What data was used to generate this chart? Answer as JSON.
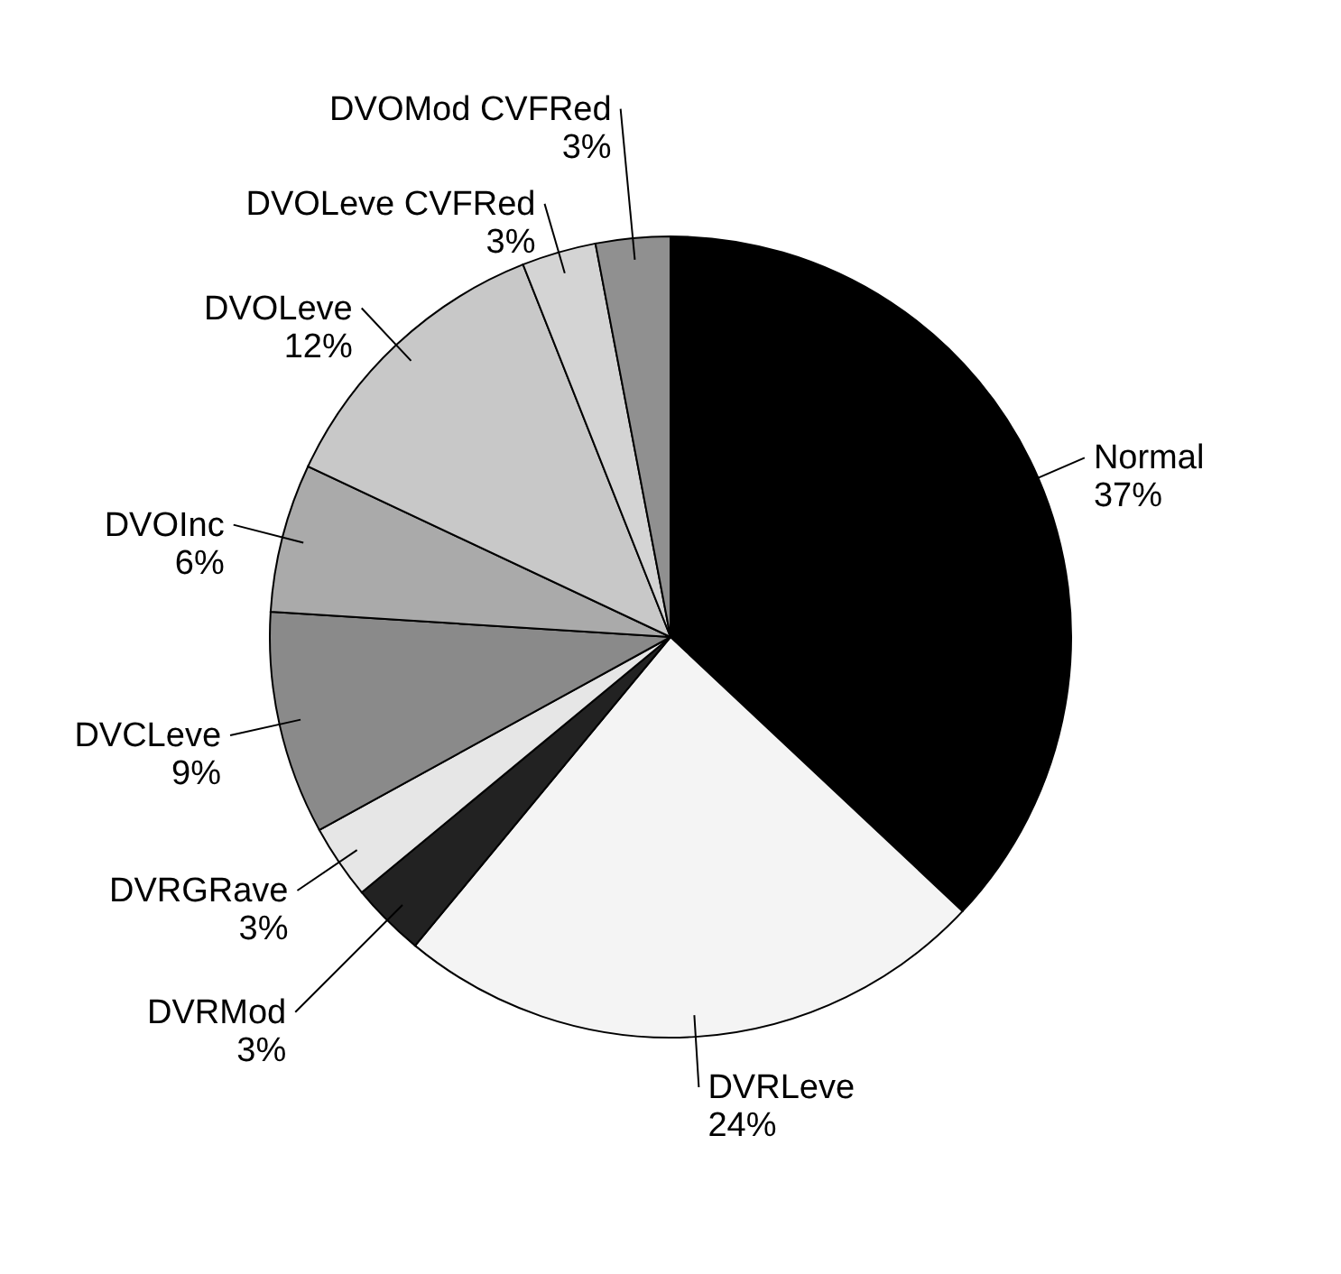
{
  "chart_data": {
    "type": "pie",
    "categories": [
      "Normal",
      "DVRLeve",
      "DVRMod",
      "DVRGRave",
      "DVCLeve",
      "DVOInc",
      "DVOLeve",
      "DVOLeve CVFRed",
      "DVOMod CVFRed"
    ],
    "values": [
      37,
      24,
      3,
      3,
      9,
      6,
      12,
      3,
      3
    ],
    "value_labels": [
      "37%",
      "24%",
      "3%",
      "3%",
      "9%",
      "6%",
      "12%",
      "3%",
      "3%"
    ],
    "colors": [
      "#000000",
      "#f4f4f4",
      "#222222",
      "#e6e6e6",
      "#8a8a8a",
      "#aaaaaa",
      "#c8c8c8",
      "#d4d4d4",
      "#909090"
    ]
  }
}
